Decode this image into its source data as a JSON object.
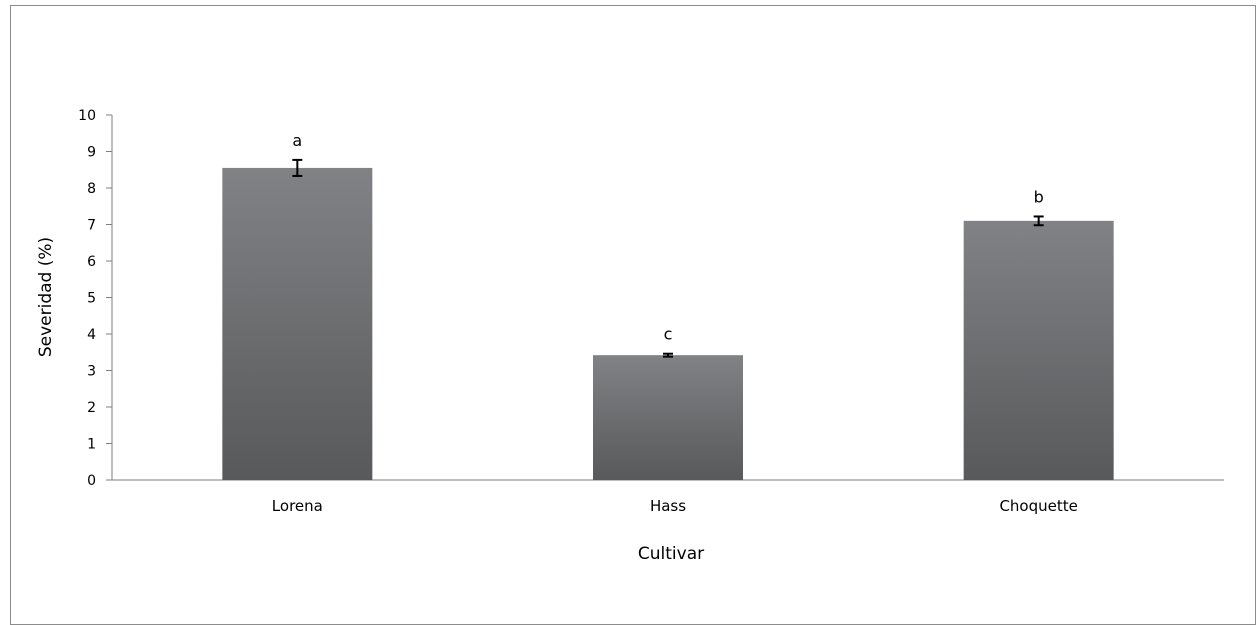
{
  "chart_data": {
    "type": "bar",
    "title": "",
    "xlabel": "Cultivar",
    "ylabel": "Severidad (%)",
    "ylim": [
      0,
      10
    ],
    "yticks": [
      0,
      1,
      2,
      3,
      4,
      5,
      6,
      7,
      8,
      9,
      10
    ],
    "categories": [
      "Lorena",
      "Hass",
      "Choquette"
    ],
    "values": [
      8.55,
      3.42,
      7.1
    ],
    "errors": [
      0.22,
      0.04,
      0.12
    ],
    "letters": [
      "a",
      "c",
      "b"
    ],
    "bar_color_top": "#808285",
    "bar_color_bottom": "#58595b",
    "grid": false,
    "legend": "none"
  }
}
